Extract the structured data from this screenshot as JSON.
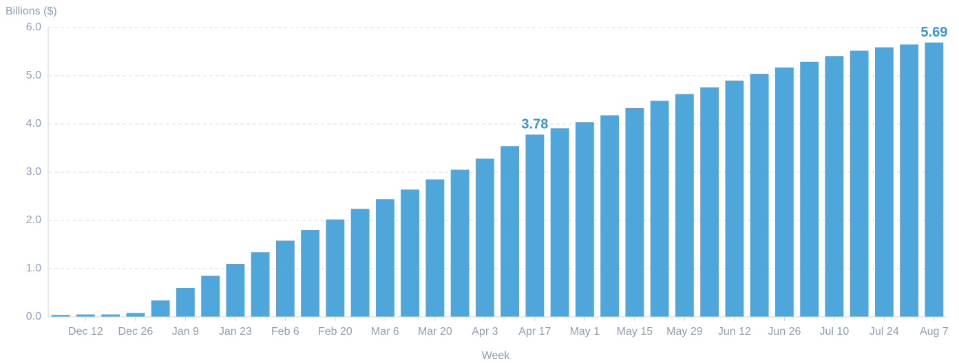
{
  "chart_data": {
    "type": "bar",
    "y_axis_label": "Billions ($)",
    "x_axis_label": "Week",
    "categories": [
      null,
      "Dec 12",
      null,
      "Dec 26",
      null,
      "Jan 9",
      null,
      "Jan 23",
      null,
      "Feb 6",
      null,
      "Feb 20",
      null,
      "Mar 6",
      null,
      "Mar 20",
      null,
      "Apr 3",
      null,
      "Apr 17",
      null,
      "May 1",
      null,
      "May 15",
      null,
      "May 29",
      null,
      "Jun 12",
      null,
      "Jun 26",
      null,
      "Jul 10",
      null,
      "Jul 24",
      null,
      "Aug 7"
    ],
    "values": [
      0.04,
      0.05,
      0.05,
      0.08,
      0.34,
      0.6,
      0.85,
      1.1,
      1.34,
      1.58,
      1.8,
      2.02,
      2.24,
      2.44,
      2.64,
      2.85,
      3.05,
      3.28,
      3.54,
      3.78,
      3.91,
      4.04,
      4.18,
      4.33,
      4.48,
      4.62,
      4.76,
      4.9,
      5.04,
      5.17,
      5.29,
      5.41,
      5.52,
      5.59,
      5.65,
      5.69
    ],
    "value_labels": [
      null,
      null,
      null,
      null,
      null,
      null,
      null,
      null,
      null,
      null,
      null,
      null,
      null,
      null,
      null,
      null,
      null,
      null,
      null,
      "3.78",
      null,
      null,
      null,
      null,
      null,
      null,
      null,
      null,
      null,
      null,
      null,
      null,
      null,
      null,
      null,
      "5.69"
    ],
    "color": "#4fa6db",
    "ylim": [
      0,
      6
    ],
    "yticks": [
      {
        "value": 0,
        "label": "0.0"
      },
      {
        "value": 1,
        "label": "1.0"
      },
      {
        "value": 2,
        "label": "2.0"
      },
      {
        "value": 3,
        "label": "3.0"
      },
      {
        "value": 4,
        "label": "4.0"
      },
      {
        "value": 5,
        "label": "5.0"
      },
      {
        "value": 6,
        "label": "6.0"
      }
    ],
    "grid": true
  }
}
